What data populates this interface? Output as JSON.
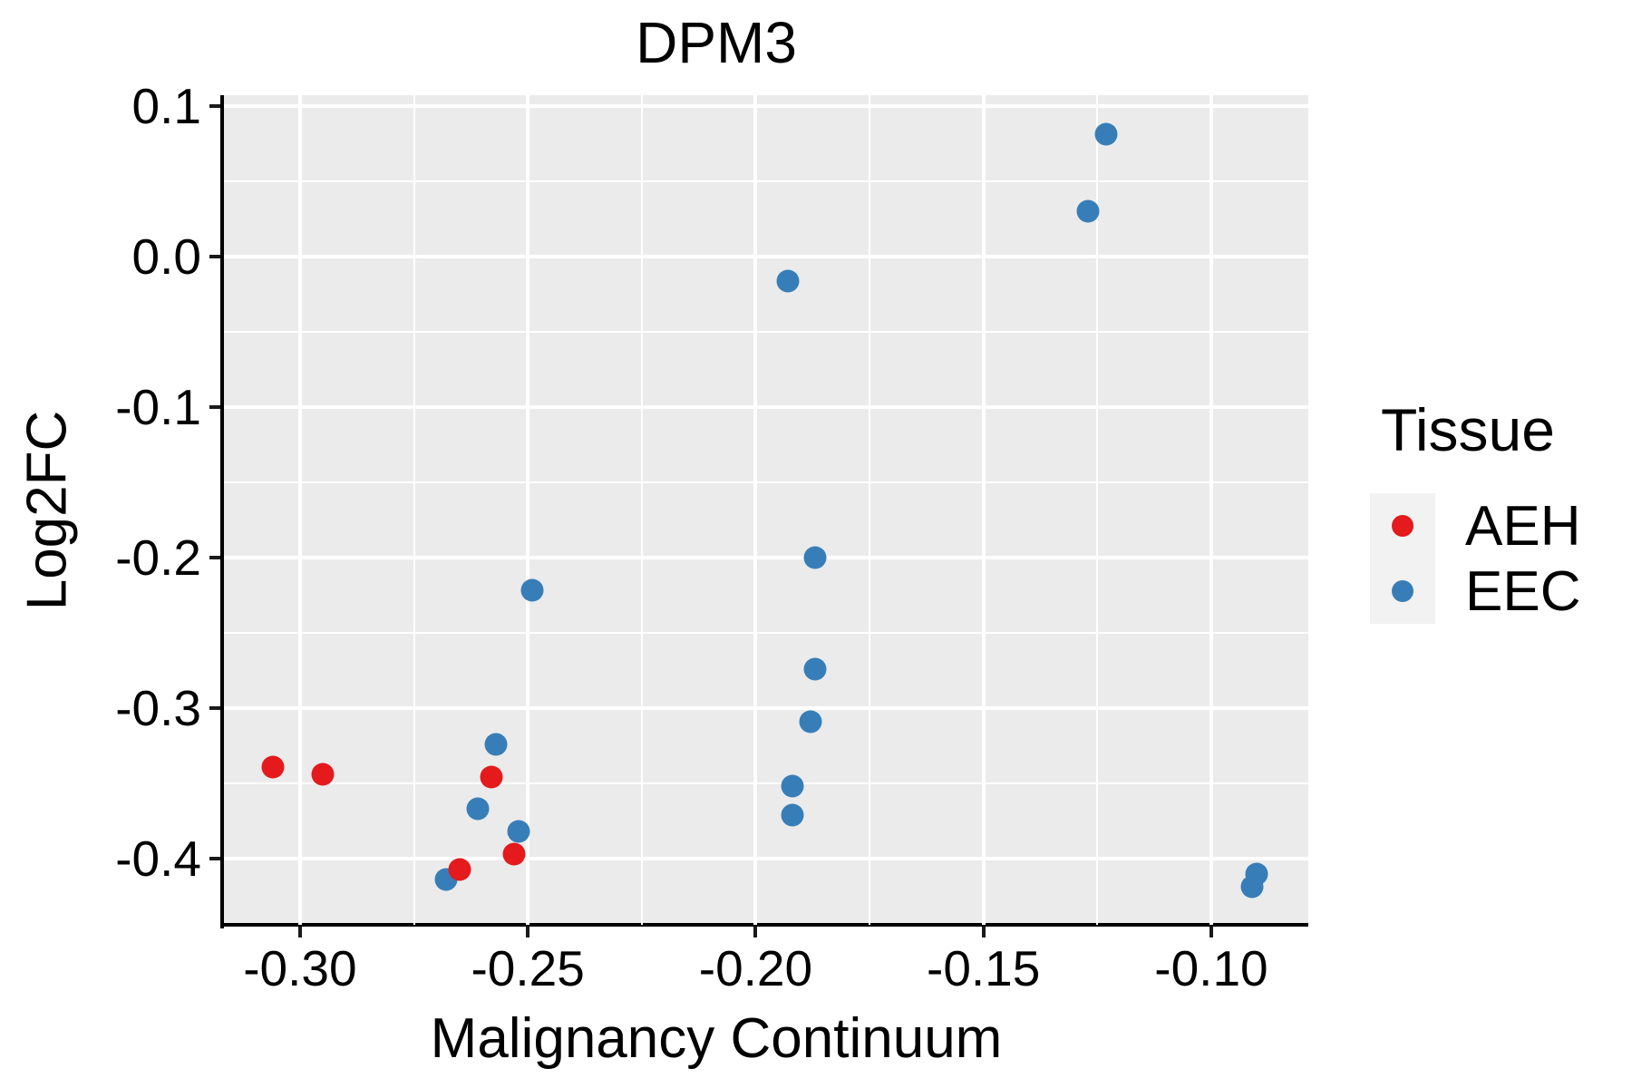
{
  "figure": {
    "background": "#FFFFFF"
  },
  "style": {
    "panel_background": "#EBEBEB",
    "grid_color": "#FFFFFF",
    "axis_color": "#000000",
    "legend_key_background": "#F2F2F2",
    "aeh_color": "#E41A1C",
    "eec_color": "#377EB8"
  },
  "chart_data": {
    "type": "scatter",
    "title": "DPM3",
    "xlabel": "Malignancy Continuum",
    "ylabel": "Log2FC",
    "xlim": [
      -0.3167,
      -0.0787
    ],
    "ylim": [
      -0.444,
      0.1072
    ],
    "grid": {
      "major": true,
      "minor": true
    },
    "x_ticks": {
      "values": [
        -0.3,
        -0.25,
        -0.2,
        -0.15,
        -0.1
      ],
      "labels": [
        "-0.30",
        "-0.25",
        "-0.20",
        "-0.15",
        "-0.10"
      ],
      "minor_values": [
        -0.275,
        -0.225,
        -0.175,
        -0.125
      ]
    },
    "y_ticks": {
      "values": [
        0.1,
        0.0,
        -0.1,
        -0.2,
        -0.3,
        -0.4
      ],
      "labels": [
        "0.1",
        "0.0",
        "-0.1",
        "-0.2",
        "-0.3",
        "-0.4"
      ],
      "minor_values": [
        0.05,
        -0.05,
        -0.15,
        -0.25,
        -0.35
      ]
    },
    "legend": {
      "title": "Tissue",
      "position": "right",
      "entries": [
        {
          "label": "AEH",
          "color": "#E41A1C"
        },
        {
          "label": "EEC",
          "color": "#377EB8"
        }
      ]
    },
    "series": [
      {
        "name": "EEC",
        "color": "#377EB8",
        "points": [
          [
            -0.193,
            -0.016
          ],
          [
            -0.123,
            0.081
          ],
          [
            -0.127,
            0.03
          ],
          [
            -0.249,
            -0.222
          ],
          [
            -0.187,
            -0.2
          ],
          [
            -0.187,
            -0.274
          ],
          [
            -0.188,
            -0.309
          ],
          [
            -0.192,
            -0.352
          ],
          [
            -0.192,
            -0.371
          ],
          [
            -0.257,
            -0.324
          ],
          [
            -0.261,
            -0.367
          ],
          [
            -0.252,
            -0.382
          ],
          [
            -0.268,
            -0.414
          ],
          [
            -0.091,
            -0.419
          ],
          [
            -0.09,
            -0.41
          ]
        ]
      },
      {
        "name": "AEH",
        "color": "#E41A1C",
        "points": [
          [
            -0.306,
            -0.339
          ],
          [
            -0.295,
            -0.344
          ],
          [
            -0.258,
            -0.346
          ],
          [
            -0.253,
            -0.397
          ],
          [
            -0.265,
            -0.407
          ]
        ]
      }
    ]
  }
}
